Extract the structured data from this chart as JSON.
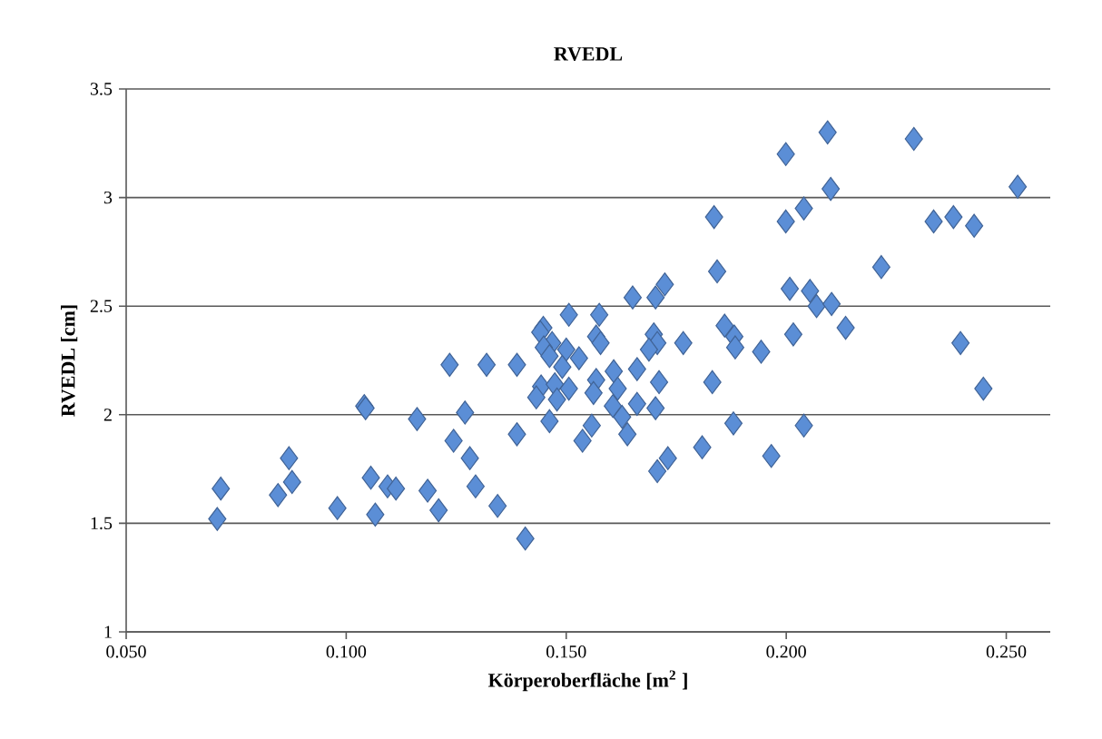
{
  "chart_data": {
    "type": "scatter",
    "title": "RVEDL",
    "xlabel": "Körperoberfläche [m$^{2}$ ]",
    "ylabel": "RVEDL [cm]",
    "xlim": [
      0.05,
      0.26
    ],
    "ylim": [
      1,
      3.5
    ],
    "xticks": [
      {
        "value": 0.05,
        "label": "0.050"
      },
      {
        "value": 0.1,
        "label": "0.100"
      },
      {
        "value": 0.15,
        "label": "0.150"
      },
      {
        "value": 0.2,
        "label": "0.200"
      },
      {
        "value": 0.25,
        "label": "0.250"
      }
    ],
    "yticks": [
      1,
      1.5,
      2,
      2.5,
      3,
      3.5
    ],
    "grid": "y",
    "marker": "diamond",
    "series": [
      {
        "color": "#5b8ed6",
        "x": [
          0.0707,
          0.0715,
          0.0845,
          0.087,
          0.0877,
          0.098,
          0.1041,
          0.1044,
          0.1056,
          0.1066,
          0.1094,
          0.1113,
          0.1161,
          0.1185,
          0.121,
          0.1235,
          0.1244,
          0.127,
          0.1281,
          0.1294,
          0.1319,
          0.1344,
          0.1388,
          0.1388,
          0.1407,
          0.1448,
          0.1441,
          0.1468,
          0.1449,
          0.1462,
          0.15,
          0.1529,
          0.1491,
          0.1506,
          0.1443,
          0.1432,
          0.1474,
          0.1506,
          0.1479,
          0.1462,
          0.1537,
          0.1575,
          0.1568,
          0.1578,
          0.1651,
          0.1703,
          0.1724,
          0.1699,
          0.1707,
          0.1688,
          0.1766,
          0.1836,
          0.1843,
          0.186,
          0.1882,
          0.1884,
          0.1943,
          0.1999,
          0.2094,
          0.2101,
          0.204,
          0.1999,
          0.2008,
          0.2054,
          0.2069,
          0.2103,
          0.2016,
          0.2135,
          0.2216,
          0.229,
          0.2335,
          0.238,
          0.2427,
          0.2396,
          0.2448,
          0.2526,
          0.204,
          0.1966,
          0.188,
          0.1832,
          0.1809,
          0.1731,
          0.1707,
          0.1711,
          0.1703,
          0.1661,
          0.1661,
          0.1608,
          0.1568,
          0.1562,
          0.1617,
          0.1606,
          0.1627,
          0.1558,
          0.1639
        ],
        "values": [
          1.52,
          1.66,
          1.63,
          1.8,
          1.69,
          1.57,
          2.04,
          2.03,
          1.71,
          1.54,
          1.67,
          1.66,
          1.98,
          1.65,
          1.56,
          2.23,
          1.88,
          2.01,
          1.8,
          1.67,
          2.23,
          1.58,
          2.23,
          1.91,
          1.43,
          2.4,
          2.38,
          2.33,
          2.31,
          2.27,
          2.3,
          2.26,
          2.22,
          2.46,
          2.13,
          2.08,
          2.14,
          2.12,
          2.07,
          1.97,
          1.88,
          2.46,
          2.36,
          2.33,
          2.54,
          2.54,
          2.6,
          2.37,
          2.33,
          2.3,
          2.33,
          2.91,
          2.66,
          2.41,
          2.36,
          2.31,
          2.29,
          3.2,
          3.3,
          3.04,
          2.95,
          2.89,
          2.58,
          2.57,
          2.5,
          2.51,
          2.37,
          2.4,
          2.68,
          3.27,
          2.89,
          2.91,
          2.87,
          2.33,
          2.12,
          3.05,
          1.95,
          1.81,
          1.96,
          2.15,
          1.85,
          1.8,
          1.74,
          2.15,
          2.03,
          2.05,
          2.21,
          2.2,
          2.16,
          2.1,
          2.12,
          2.04,
          1.99,
          1.95,
          1.91
        ]
      }
    ]
  }
}
